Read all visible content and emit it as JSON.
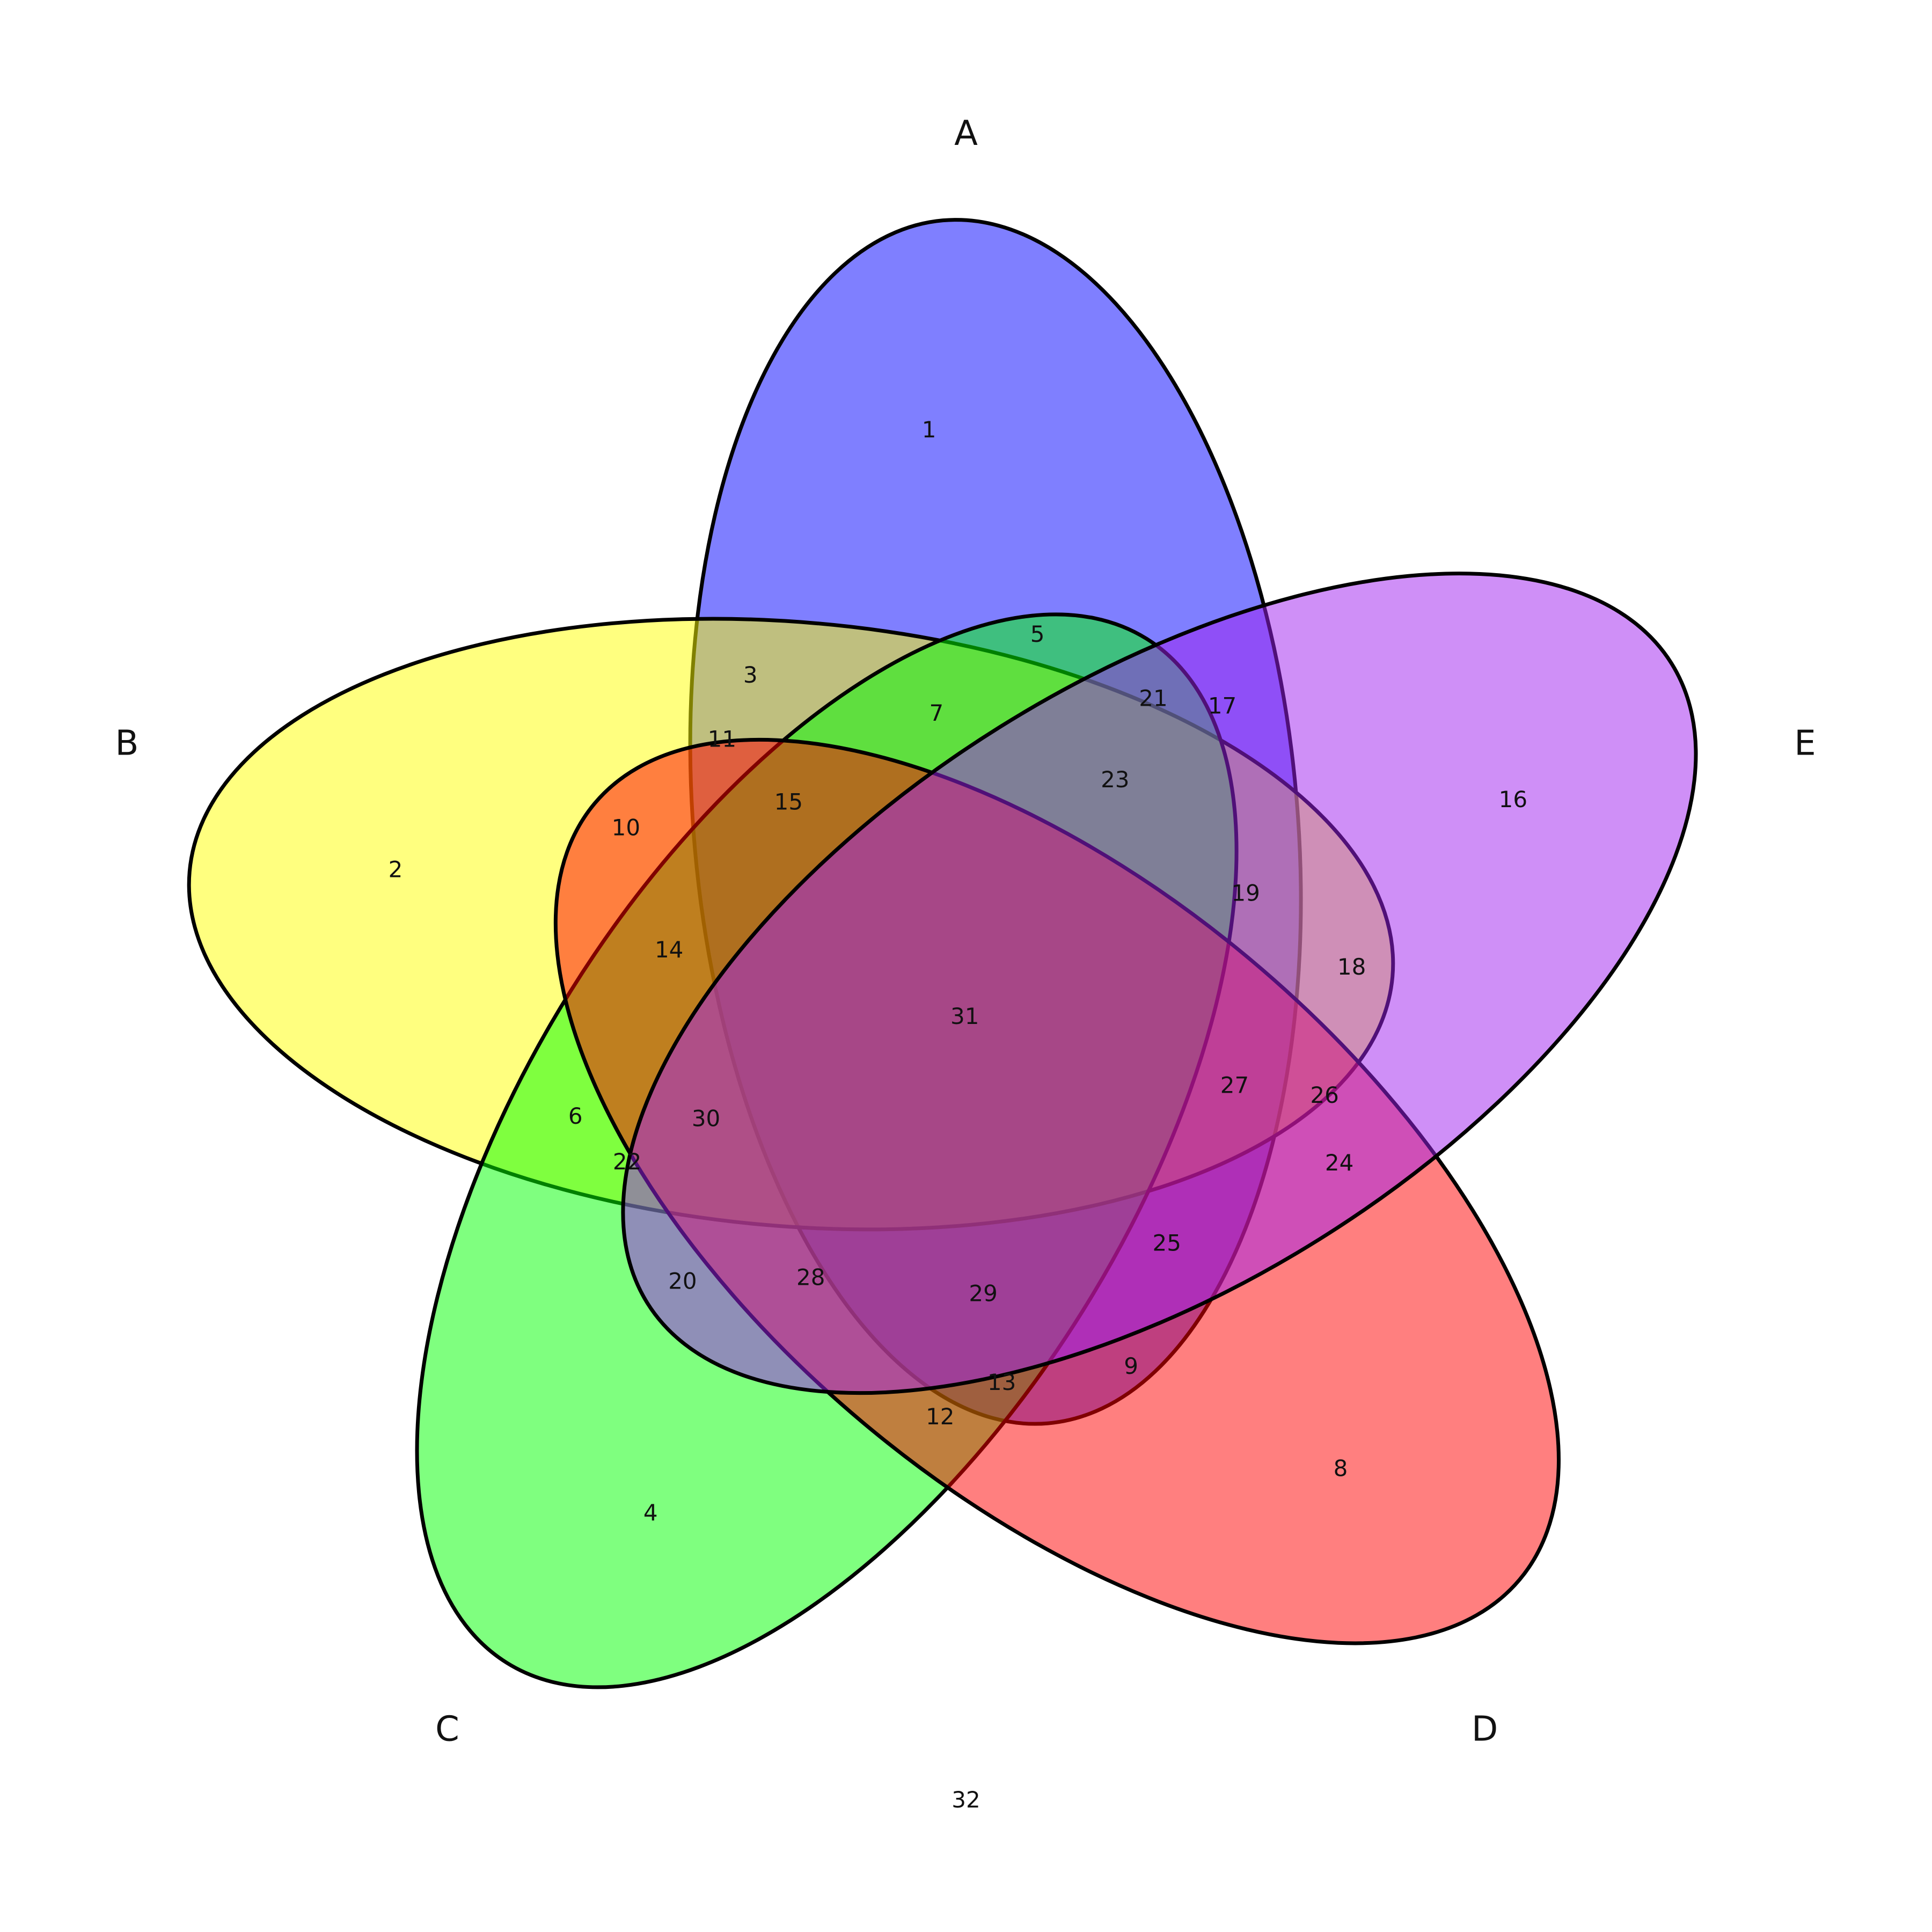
{
  "diagram": {
    "type": "five-set venn diagram",
    "sets": [
      {
        "id": "A",
        "label": "A",
        "color": "#0000FF"
      },
      {
        "id": "B",
        "label": "B",
        "color": "#FFFF00"
      },
      {
        "id": "C",
        "label": "C",
        "color": "#00FF00"
      },
      {
        "id": "D",
        "label": "D",
        "color": "#FF0000"
      },
      {
        "id": "E",
        "label": "E",
        "color": "#A020F0"
      }
    ],
    "regions": [
      {
        "label": "1",
        "sets": [
          "A"
        ]
      },
      {
        "label": "2",
        "sets": [
          "B"
        ]
      },
      {
        "label": "3",
        "sets": [
          "A",
          "B"
        ]
      },
      {
        "label": "4",
        "sets": [
          "C"
        ]
      },
      {
        "label": "5",
        "sets": [
          "A",
          "C"
        ]
      },
      {
        "label": "6",
        "sets": [
          "B",
          "C"
        ]
      },
      {
        "label": "7",
        "sets": [
          "A",
          "B",
          "C"
        ]
      },
      {
        "label": "8",
        "sets": [
          "D"
        ]
      },
      {
        "label": "9",
        "sets": [
          "A",
          "D"
        ]
      },
      {
        "label": "10",
        "sets": [
          "B",
          "D"
        ]
      },
      {
        "label": "11",
        "sets": [
          "A",
          "B",
          "D"
        ]
      },
      {
        "label": "12",
        "sets": [
          "C",
          "D"
        ]
      },
      {
        "label": "13",
        "sets": [
          "A",
          "C",
          "D"
        ]
      },
      {
        "label": "14",
        "sets": [
          "B",
          "C",
          "D"
        ]
      },
      {
        "label": "15",
        "sets": [
          "A",
          "B",
          "C",
          "D"
        ]
      },
      {
        "label": "16",
        "sets": [
          "E"
        ]
      },
      {
        "label": "17",
        "sets": [
          "A",
          "E"
        ]
      },
      {
        "label": "18",
        "sets": [
          "B",
          "E"
        ]
      },
      {
        "label": "19",
        "sets": [
          "A",
          "B",
          "E"
        ]
      },
      {
        "label": "20",
        "sets": [
          "C",
          "E"
        ]
      },
      {
        "label": "21",
        "sets": [
          "A",
          "C",
          "E"
        ]
      },
      {
        "label": "22",
        "sets": [
          "B",
          "C",
          "E"
        ]
      },
      {
        "label": "23",
        "sets": [
          "A",
          "B",
          "C",
          "E"
        ]
      },
      {
        "label": "24",
        "sets": [
          "D",
          "E"
        ]
      },
      {
        "label": "25",
        "sets": [
          "A",
          "D",
          "E"
        ]
      },
      {
        "label": "26",
        "sets": [
          "B",
          "D",
          "E"
        ]
      },
      {
        "label": "27",
        "sets": [
          "A",
          "B",
          "D",
          "E"
        ]
      },
      {
        "label": "28",
        "sets": [
          "C",
          "D",
          "E"
        ]
      },
      {
        "label": "29",
        "sets": [
          "A",
          "C",
          "D",
          "E"
        ]
      },
      {
        "label": "30",
        "sets": [
          "B",
          "C",
          "D",
          "E"
        ]
      },
      {
        "label": "31",
        "sets": [
          "A",
          "B",
          "C",
          "D",
          "E"
        ]
      },
      {
        "label": "32",
        "sets": []
      }
    ]
  }
}
